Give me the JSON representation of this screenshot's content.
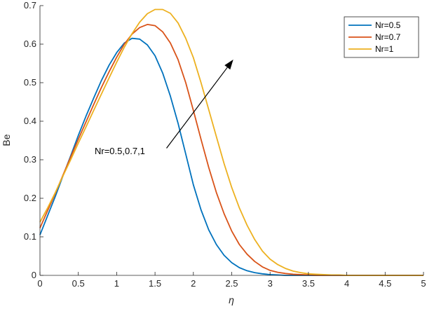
{
  "chart_data": {
    "type": "line",
    "xlabel": "η",
    "ylabel": "Be",
    "xlim": [
      0,
      5
    ],
    "ylim": [
      0,
      0.7
    ],
    "xticks": [
      "0",
      "0.5",
      "1",
      "1.5",
      "2",
      "2.5",
      "3",
      "3.5",
      "4",
      "4.5",
      "5"
    ],
    "yticks": [
      "0",
      "0.1",
      "0.2",
      "0.3",
      "0.4",
      "0.5",
      "0.6",
      "0.7"
    ],
    "grid": false,
    "legend_position": "top-right",
    "annotation": {
      "text": "Nr=0.5,0.7,1",
      "arrow_from": [
        1.65,
        0.33
      ],
      "arrow_to": [
        2.52,
        0.56
      ]
    },
    "x": [
      0,
      0.1,
      0.2,
      0.3,
      0.4,
      0.5,
      0.6,
      0.7,
      0.8,
      0.9,
      1.0,
      1.1,
      1.2,
      1.3,
      1.4,
      1.5,
      1.6,
      1.7,
      1.8,
      1.9,
      2.0,
      2.1,
      2.2,
      2.3,
      2.4,
      2.5,
      2.6,
      2.7,
      2.8,
      2.9,
      3.0,
      3.1,
      3.2,
      3.3,
      3.4,
      3.5,
      3.6,
      3.7,
      3.8,
      3.9,
      4.0,
      4.5,
      5.0
    ],
    "series": [
      {
        "name": "Nr=0.5",
        "color": "#0072BD",
        "values": [
          0.105,
          0.155,
          0.205,
          0.258,
          0.31,
          0.363,
          0.413,
          0.46,
          0.505,
          0.545,
          0.578,
          0.603,
          0.615,
          0.613,
          0.598,
          0.57,
          0.525,
          0.465,
          0.395,
          0.315,
          0.235,
          0.17,
          0.118,
          0.08,
          0.052,
          0.033,
          0.02,
          0.012,
          0.007,
          0.004,
          0.002,
          0.001,
          0.0,
          0.0,
          0.0,
          0.0,
          0.0,
          0.0,
          0.0,
          0.0,
          0.0,
          0.0,
          0.0
        ]
      },
      {
        "name": "Nr=0.7",
        "color": "#D95319",
        "values": [
          0.123,
          0.168,
          0.213,
          0.26,
          0.307,
          0.353,
          0.398,
          0.443,
          0.487,
          0.528,
          0.566,
          0.6,
          0.626,
          0.643,
          0.651,
          0.648,
          0.632,
          0.603,
          0.56,
          0.5,
          0.428,
          0.353,
          0.28,
          0.215,
          0.16,
          0.115,
          0.08,
          0.055,
          0.036,
          0.022,
          0.013,
          0.008,
          0.005,
          0.003,
          0.002,
          0.001,
          0.0,
          0.0,
          0.0,
          0.0,
          0.0,
          0.0,
          0.0
        ]
      },
      {
        "name": "Nr=1",
        "color": "#EDB120",
        "values": [
          0.138,
          0.175,
          0.215,
          0.258,
          0.3,
          0.343,
          0.385,
          0.428,
          0.47,
          0.512,
          0.553,
          0.592,
          0.627,
          0.657,
          0.679,
          0.69,
          0.69,
          0.68,
          0.655,
          0.615,
          0.565,
          0.5,
          0.43,
          0.36,
          0.29,
          0.228,
          0.175,
          0.13,
          0.093,
          0.063,
          0.042,
          0.028,
          0.018,
          0.011,
          0.007,
          0.004,
          0.003,
          0.002,
          0.001,
          0.001,
          0.0,
          0.0,
          0.0
        ]
      }
    ]
  }
}
